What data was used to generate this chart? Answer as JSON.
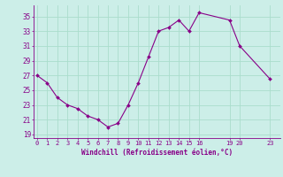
{
  "x_values": [
    0,
    1,
    2,
    3,
    4,
    5,
    6,
    7,
    8,
    9,
    10,
    11,
    12,
    13,
    14,
    15,
    16,
    19,
    20,
    23
  ],
  "y_values": [
    27,
    26,
    24,
    23,
    22.5,
    21.5,
    21,
    20,
    20.5,
    23,
    26,
    29.5,
    33,
    33.5,
    34.5,
    33,
    35.5,
    34.5,
    31,
    26.5
  ],
  "line_color": "#880088",
  "marker_color": "#880088",
  "bg_color": "#cceee8",
  "grid_color": "#aaddcc",
  "axis_color": "#880088",
  "tick_label_color": "#880088",
  "xlabel": "Windchill (Refroidissement éolien,°C)",
  "yticks": [
    19,
    21,
    23,
    25,
    27,
    29,
    31,
    33,
    35
  ],
  "xtick_values": [
    0,
    1,
    2,
    3,
    4,
    5,
    6,
    7,
    8,
    9,
    10,
    11,
    12,
    13,
    14,
    15,
    16,
    19,
    20,
    23
  ],
  "xtick_labels": [
    "0",
    "1",
    "2",
    "3",
    "4",
    "5",
    "6",
    "7",
    "8",
    "9",
    "10",
    "11",
    "12",
    "13",
    "14",
    "15",
    "16",
    "19",
    "20",
    "23"
  ],
  "ylim": [
    18.5,
    36.5
  ],
  "xlim": [
    -0.3,
    24.0
  ]
}
